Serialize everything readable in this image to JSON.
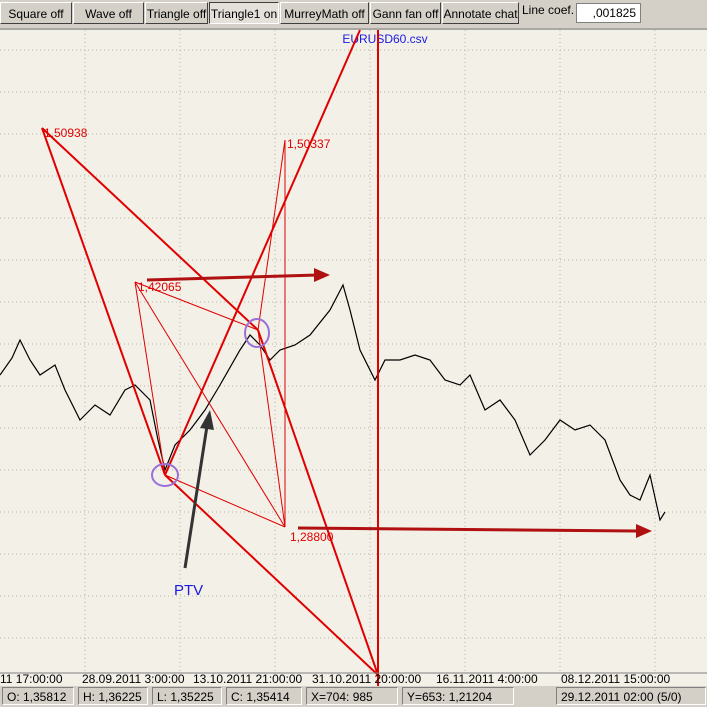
{
  "toolbar": {
    "buttons": [
      "Square off",
      "Wave off",
      "Triangle off",
      "Triangle1 on",
      "MurreyMath off",
      "Gann fan off",
      "Annotate chat"
    ],
    "line_coef_label": "Line coef.",
    "line_coef_value": ",001825"
  },
  "chart": {
    "title": "EURUSD60.csv",
    "price_labels": [
      "1,50938",
      "1,50337",
      "1,42065",
      "1,28800"
    ],
    "annotation": "PTV",
    "x_axis_labels": [
      "11 17:00:00",
      "28.09.2011 3:00:00",
      "13.10.2011 21:00:00",
      "31.10.2011 20:00:00",
      "16.11.2011 4:00:00",
      "08.12.2011 15:00:00"
    ]
  },
  "status_bar": [
    "O: 1,35812",
    "H: 1,36225",
    "L: 1,35225",
    "C: 1,35414",
    "X=704: 985",
    "Y=653: 1,21204",
    "29.12.2011 02:00 (5/0)"
  ]
}
